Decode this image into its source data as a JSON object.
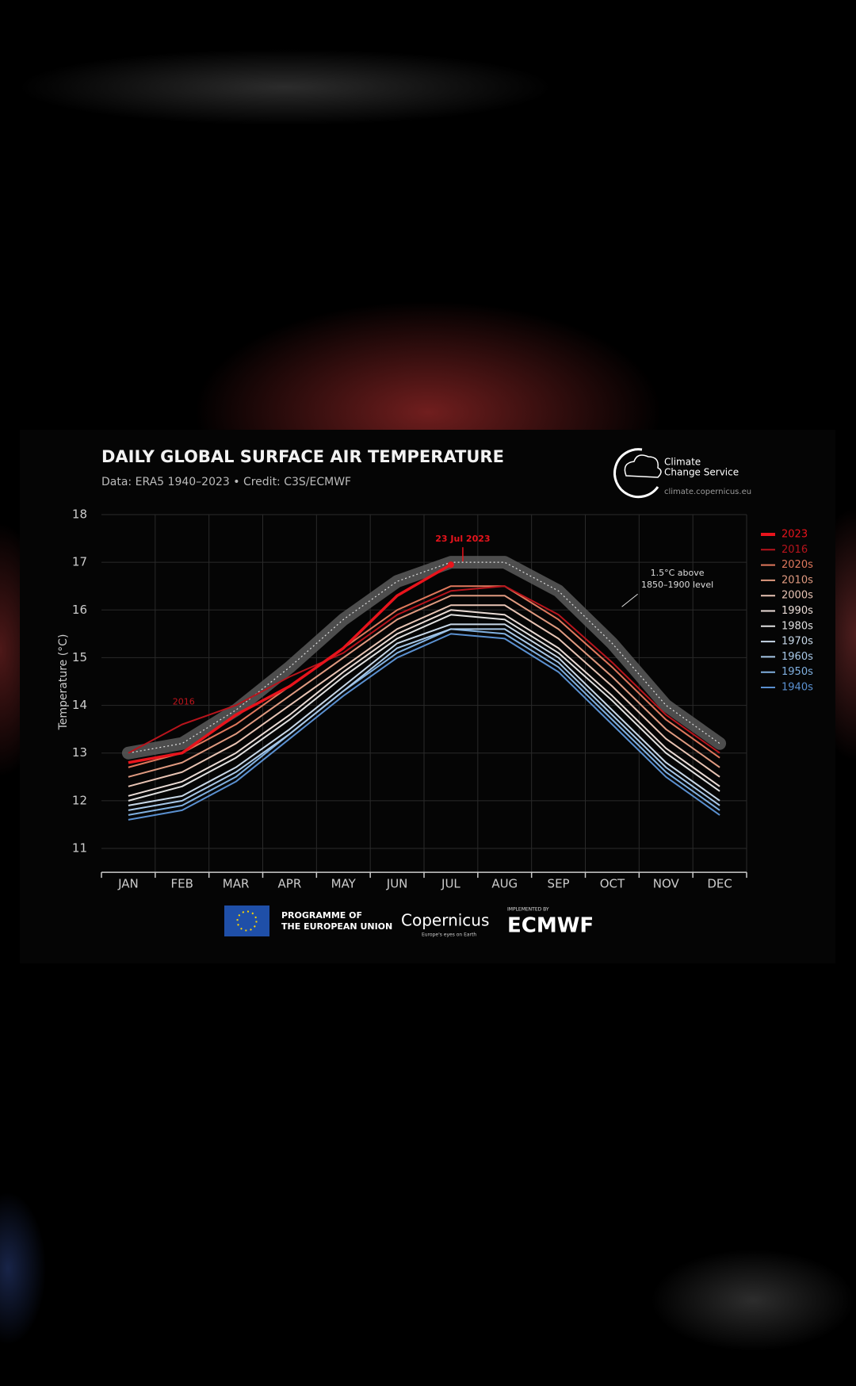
{
  "chart_data": {
    "type": "line",
    "title": "DAILY GLOBAL SURFACE AIR TEMPERATURE",
    "subtitle": "Data: ERA5 1940–2023 • Credit: C3S/ECMWF",
    "y_label": "Temperature (°C)",
    "categories": [
      "JAN",
      "FEB",
      "MAR",
      "APR",
      "MAY",
      "JUN",
      "JUL",
      "AUG",
      "SEP",
      "OCT",
      "NOV",
      "DEC"
    ],
    "ylim": [
      10.5,
      18
    ],
    "yticks": [
      11,
      12,
      13,
      14,
      15,
      16,
      17,
      18
    ],
    "grid": true,
    "legend": "right",
    "band": {
      "label": [
        "1.5°C above",
        "1850–1900 level"
      ],
      "color": "#5a5a5a",
      "values": [
        13.0,
        13.2,
        13.9,
        14.8,
        15.8,
        16.6,
        17.0,
        17.0,
        16.4,
        15.3,
        14.0,
        13.2
      ]
    },
    "series": [
      {
        "name": "2023",
        "color": "#e8141c",
        "values": [
          12.8,
          13.0,
          13.8,
          14.4,
          15.2,
          16.3,
          16.95,
          null,
          null,
          null,
          null,
          null
        ]
      },
      {
        "name": "2016",
        "color": "#b8141c",
        "values": [
          13.0,
          13.6,
          14.0,
          14.6,
          15.1,
          15.9,
          16.4,
          16.5,
          15.9,
          14.9,
          13.8,
          13.0
        ]
      },
      {
        "name": "2020s",
        "color": "#e0785c",
        "values": [
          12.7,
          13.0,
          13.6,
          14.4,
          15.2,
          16.0,
          16.5,
          16.5,
          15.8,
          14.8,
          13.7,
          12.9
        ]
      },
      {
        "name": "2010s",
        "color": "#e09a80",
        "values": [
          12.5,
          12.8,
          13.4,
          14.2,
          15.0,
          15.8,
          16.3,
          16.3,
          15.6,
          14.6,
          13.5,
          12.7
        ]
      },
      {
        "name": "2000s",
        "color": "#e8c4b4",
        "values": [
          12.3,
          12.6,
          13.2,
          14.0,
          14.8,
          15.6,
          16.1,
          16.1,
          15.4,
          14.4,
          13.3,
          12.5
        ]
      },
      {
        "name": "1990s",
        "color": "#eadcd6",
        "values": [
          12.1,
          12.4,
          13.0,
          13.8,
          14.7,
          15.5,
          16.0,
          15.9,
          15.2,
          14.2,
          13.1,
          12.3
        ]
      },
      {
        "name": "1980s",
        "color": "#e0e0e0",
        "values": [
          12.0,
          12.3,
          12.9,
          13.7,
          14.6,
          15.4,
          15.9,
          15.8,
          15.1,
          14.1,
          13.0,
          12.2
        ]
      },
      {
        "name": "1970s",
        "color": "#c8d8e8",
        "values": [
          11.9,
          12.1,
          12.7,
          13.5,
          14.4,
          15.3,
          15.7,
          15.7,
          15.0,
          13.9,
          12.8,
          12.0
        ]
      },
      {
        "name": "1960s",
        "color": "#a8c8e8",
        "values": [
          11.8,
          12.0,
          12.6,
          13.4,
          14.3,
          15.2,
          15.6,
          15.6,
          14.9,
          13.8,
          12.7,
          11.9
        ]
      },
      {
        "name": "1950s",
        "color": "#80b0e0",
        "values": [
          11.7,
          11.9,
          12.5,
          13.4,
          14.3,
          15.1,
          15.6,
          15.5,
          14.8,
          13.7,
          12.6,
          11.8
        ]
      },
      {
        "name": "1940s",
        "color": "#5a90d0",
        "values": [
          11.6,
          11.8,
          12.4,
          13.3,
          14.2,
          15.0,
          15.5,
          15.4,
          14.7,
          13.6,
          12.5,
          11.7
        ]
      }
    ],
    "annotations": [
      {
        "text": "2016",
        "color": "#c0141c"
      },
      {
        "text": "23 Jul 2023",
        "color": "#e8141c"
      }
    ]
  },
  "branding": {
    "service": [
      "Climate",
      "Change Service"
    ],
    "url": "climate.copernicus.eu",
    "eu": [
      "PROGRAMME OF",
      "THE EUROPEAN UNION"
    ],
    "copernicus": "Copernicus",
    "copernicus_tagline": "Europe's eyes on Earth",
    "implemented": "IMPLEMENTED BY",
    "ecmwf": "ECMWF"
  }
}
